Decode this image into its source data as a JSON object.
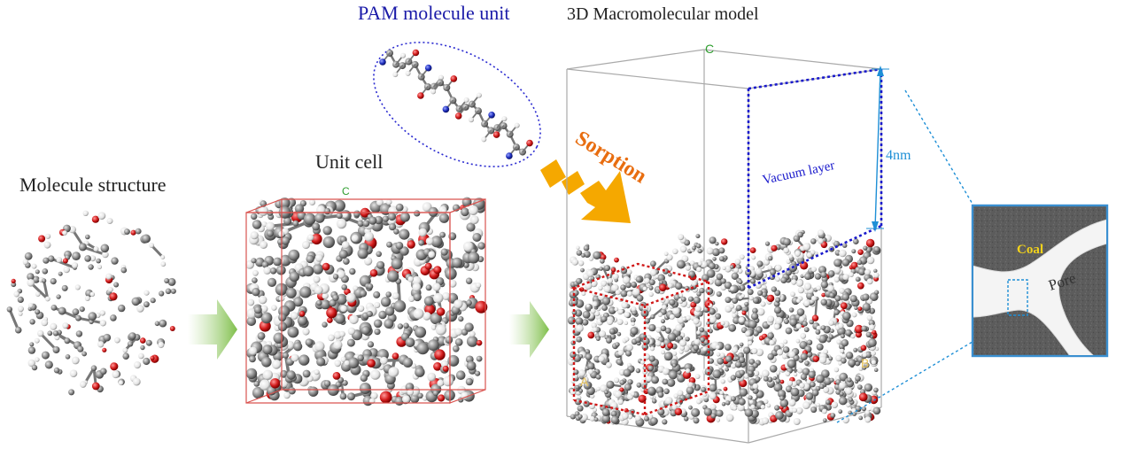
{
  "labels": {
    "molecule_structure": "Molecule structure",
    "unit_cell": "Unit cell",
    "pam_unit": "PAM molecule unit",
    "macromodel": "3D Macromolecular model",
    "sorption": "Sorption",
    "vacuum_layer": "Vacuum layer",
    "thickness": "4nm",
    "coal": "Coal",
    "pore": "Pore"
  },
  "axis_labels": {
    "unit_c": "C",
    "model_c": "C",
    "model_a": "A",
    "model_b": "B"
  },
  "colors": {
    "pam_text": "#1a1aa8",
    "vacuum_dots": "#1a1acc",
    "unit_cell_dots": "#d01818",
    "sorption_arrow": "#f5a800",
    "sorption_text": "#e86d10",
    "dimension_line": "#1e8fd6",
    "coal_text": "#f2d21b",
    "flow_arrow": "#8fc95a",
    "atom_carbon": "#7d7d7d",
    "atom_oxygen": "#d21c1c",
    "atom_hydrogen": "#e8e8e8",
    "atom_nitrogen": "#1f2fbf"
  },
  "icons": [
    "flow-arrow-icon",
    "sorption-arrow-icon"
  ]
}
